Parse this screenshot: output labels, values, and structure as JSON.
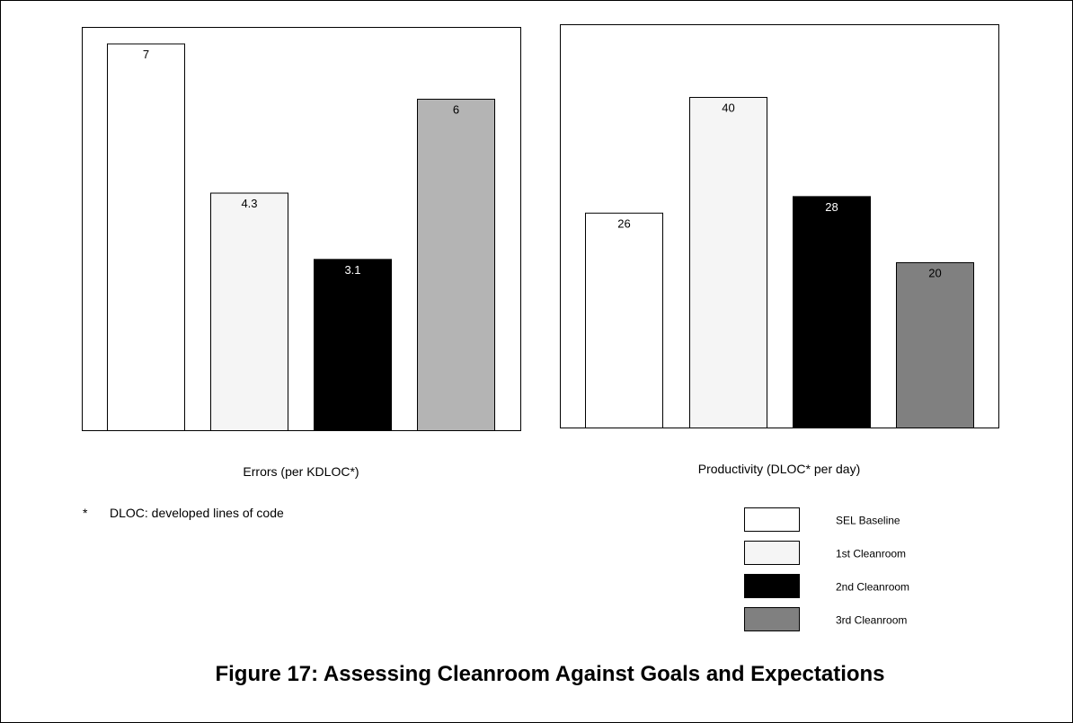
{
  "chart_data": [
    {
      "type": "bar",
      "title": "",
      "xlabel": "Errors (per KDLOC*)",
      "ylabel": "",
      "ylim": [
        0,
        7.3
      ],
      "grid": false,
      "categories": [
        "SEL Baseline",
        "1st Cleanroom",
        "2nd Cleanroom",
        "3rd Cleanroom"
      ],
      "values": [
        7,
        4.3,
        3.1,
        6
      ],
      "value_labels": [
        "7",
        "4.3",
        "3.1",
        "6"
      ],
      "bar_colors": [
        "#ffffff",
        "#f5f5f5",
        "#000000",
        "#b4b4b4"
      ],
      "label_colors": [
        "#000000",
        "#000000",
        "#ffffff",
        "#000000"
      ]
    },
    {
      "type": "bar",
      "title": "",
      "xlabel": "Productivity (DLOC* per day)",
      "ylabel": "",
      "ylim": [
        0,
        48.8
      ],
      "grid": false,
      "categories": [
        "SEL Baseline",
        "1st Cleanroom",
        "2nd Cleanroom",
        "3rd Cleanroom"
      ],
      "values": [
        26,
        40,
        28,
        20
      ],
      "value_labels": [
        "26",
        "40",
        "28",
        "20"
      ],
      "bar_colors": [
        "#ffffff",
        "#f5f5f5",
        "#000000",
        "#808080"
      ],
      "label_colors": [
        "#000000",
        "#000000",
        "#ffffff",
        "#000000"
      ]
    }
  ],
  "legend": {
    "placement": "bottom-right",
    "items": [
      {
        "label": "SEL Baseline",
        "color": "#ffffff"
      },
      {
        "label": "1st Cleanroom",
        "color": "#f5f5f5"
      },
      {
        "label": "2nd Cleanroom",
        "color": "#000000"
      },
      {
        "label": "3rd Cleanroom",
        "color": "#808080"
      }
    ]
  },
  "footnote": {
    "marker": "*",
    "text": "DLOC: developed lines of code"
  },
  "caption": "Figure 17:  Assessing Cleanroom Against Goals and Expectations"
}
